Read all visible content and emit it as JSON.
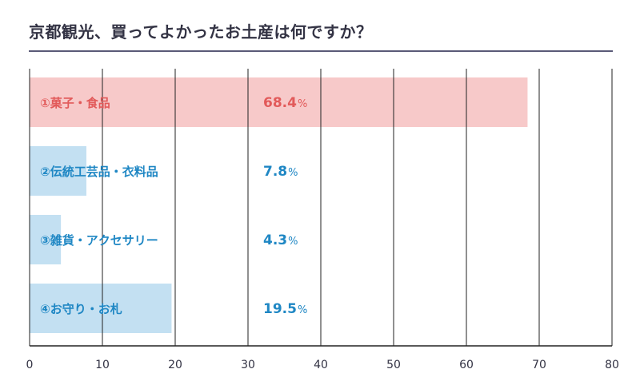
{
  "chart_data": {
    "type": "bar",
    "orientation": "horizontal",
    "title": "京都観光、買ってよかったお土産は何ですか？",
    "categories": [
      "①菓子・食品",
      "②伝統工芸品・衣料品",
      "③雑貨・アクセサリー",
      "④お守り・お札"
    ],
    "values": [
      68.4,
      7.8,
      4.3,
      19.5
    ],
    "value_labels": [
      "68.4",
      "7.8",
      "4.3",
      "19.5"
    ],
    "value_suffix": "%",
    "xlim": [
      0,
      80
    ],
    "xticks": [
      0,
      10,
      20,
      30,
      40,
      50,
      60,
      70,
      80
    ],
    "xtick_labels": [
      "0",
      "10",
      "20",
      "30",
      "40",
      "50",
      "60",
      "70",
      "80"
    ],
    "xlabel": "",
    "ylabel": "",
    "grid": true,
    "colors": {
      "highlight_bar": "#f7c9c9",
      "highlight_text": "#e25a5a",
      "bar": "#c3e0f2",
      "text": "#1f87c4",
      "grid": "#222222",
      "title_rule": "#5a5a78"
    }
  }
}
